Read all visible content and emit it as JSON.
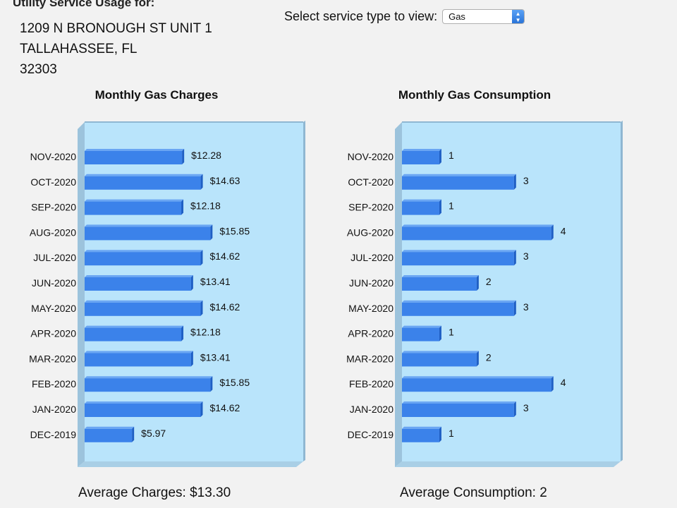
{
  "header": {
    "title": "Utility Service Usage for:",
    "address_line1": "1209 N BRONOUGH ST UNIT 1",
    "address_line2": "TALLAHASSEE, FL",
    "address_line3": "32303"
  },
  "service_selector": {
    "label": "Select service type to view:",
    "selected": "Gas"
  },
  "charts": {
    "charges_title": "Monthly Gas Charges",
    "consumption_title": "Monthly Gas Consumption"
  },
  "averages": {
    "charges": "Average Charges: $13.30",
    "consumption": "Average Consumption: 2"
  },
  "colors": {
    "plot_background": "#b9e4fb",
    "bar": "#3b82ea",
    "bar_dark": "#1f5fc4"
  },
  "chart_data": [
    {
      "type": "bar",
      "orientation": "horizontal",
      "title": "Monthly Gas Charges",
      "categories": [
        "NOV-2020",
        "OCT-2020",
        "SEP-2020",
        "AUG-2020",
        "JUL-2020",
        "JUN-2020",
        "MAY-2020",
        "APR-2020",
        "MAR-2020",
        "FEB-2020",
        "JAN-2020",
        "DEC-2019"
      ],
      "values": [
        12.28,
        14.63,
        12.18,
        15.85,
        14.62,
        13.41,
        14.62,
        12.18,
        13.41,
        15.85,
        14.62,
        5.97
      ],
      "data_labels": [
        "$12.28",
        "$14.63",
        "$12.18",
        "$15.85",
        "$14.62",
        "$13.41",
        "$14.62",
        "$12.18",
        "$13.41",
        "$15.85",
        "$14.62",
        "$5.97"
      ],
      "xlim": [
        0,
        24
      ],
      "grid": false
    },
    {
      "type": "bar",
      "orientation": "horizontal",
      "title": "Monthly Gas Consumption",
      "categories": [
        "NOV-2020",
        "OCT-2020",
        "SEP-2020",
        "AUG-2020",
        "JUL-2020",
        "JUN-2020",
        "MAY-2020",
        "APR-2020",
        "MAR-2020",
        "FEB-2020",
        "JAN-2020",
        "DEC-2019"
      ],
      "values": [
        1,
        3,
        1,
        4,
        3,
        2,
        3,
        1,
        2,
        4,
        3,
        1
      ],
      "data_labels": [
        "1",
        "3",
        "1",
        "4",
        "3",
        "2",
        "3",
        "1",
        "2",
        "4",
        "3",
        "1"
      ],
      "xlim": [
        0,
        5.1
      ],
      "grid": false
    }
  ]
}
